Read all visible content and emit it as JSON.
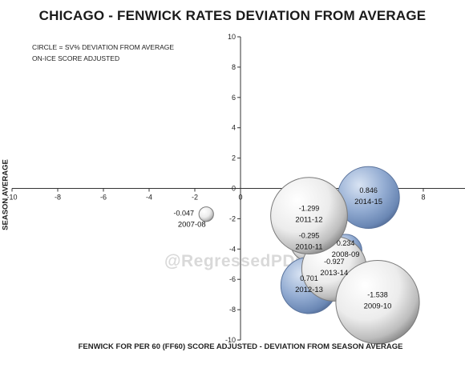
{
  "chart_data": {
    "type": "scatter",
    "subtype": "bubble",
    "title": "CHICAGO - FENWICK RATES DEVIATION FROM AVERAGE",
    "notes": [
      "CIRCLE = SV% DEVIATION FROM AVERAGE",
      "ON-ICE SCORE ADJUSTED"
    ],
    "xlabel": "FENWICK FOR PER 60 (FF60) SCORE ADJUSTED - DEVIATION FROM SEASON AVERAGE",
    "ylabel": "SEASON AVERAGE",
    "xlim": [
      -10,
      10
    ],
    "ylim": [
      -10,
      10
    ],
    "xticks": [
      -10,
      -8,
      -6,
      -4,
      -2,
      0,
      2,
      4,
      6,
      8
    ],
    "yticks": [
      10,
      8,
      6,
      4,
      2,
      0,
      -2,
      -4,
      -6,
      -8,
      -10
    ],
    "grid": false,
    "points": [
      {
        "season": "2007-08",
        "sv_label": "-0.047",
        "x": -1.5,
        "y": -1.7,
        "sv": -0.047
      },
      {
        "season": "2014-15",
        "sv_label": "0.846",
        "x": 5.6,
        "y": -0.6,
        "sv": 0.846
      },
      {
        "season": "2011-12",
        "sv_label": "-1.299",
        "x": 3.0,
        "y": -1.8,
        "sv": -1.299
      },
      {
        "season": "2010-11",
        "sv_label": "-0.295",
        "x": 3.0,
        "y": -3.6,
        "sv": -0.295
      },
      {
        "season": "2008-09",
        "sv_label": "0.234",
        "x": 4.6,
        "y": -4.1,
        "sv": 0.234
      },
      {
        "season": "2013-14",
        "sv_label": "-0.927",
        "x": 4.1,
        "y": -5.3,
        "sv": -0.927
      },
      {
        "season": "2012-13",
        "sv_label": "0.701",
        "x": 3.0,
        "y": -6.4,
        "sv": 0.701
      },
      {
        "season": "2009-10",
        "sv_label": "-1.538",
        "x": 6.0,
        "y": -7.5,
        "sv": -1.538
      }
    ],
    "colors": {
      "positive": "#7f9bc4",
      "negative": "#e6e6e6",
      "axis": "#333333"
    }
  },
  "watermark": "@RegressedPDO"
}
